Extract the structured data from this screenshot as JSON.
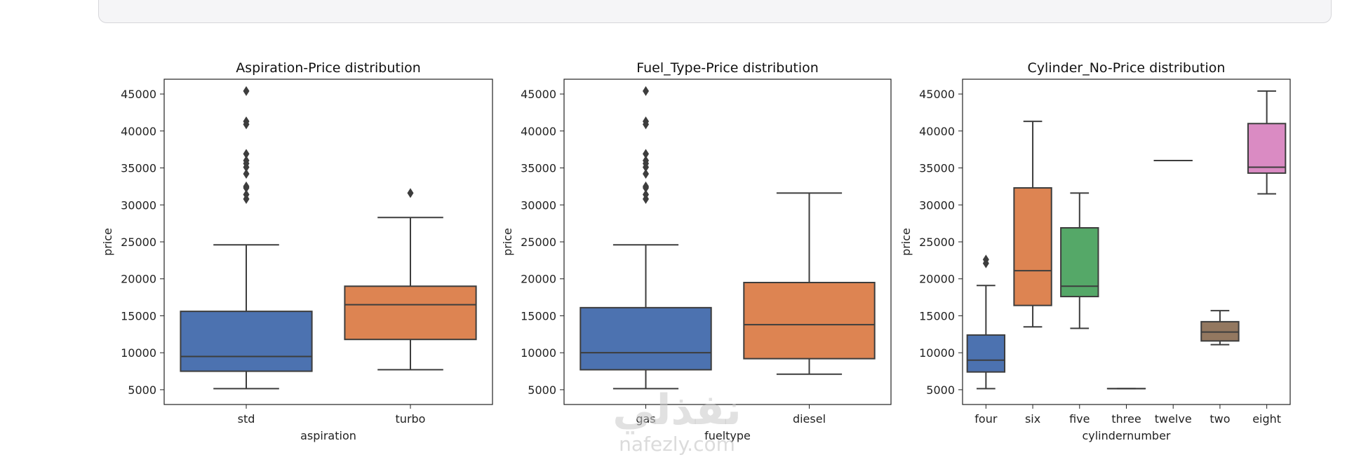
{
  "colors": {
    "blue": "#4c72b0",
    "orange": "#dd8452",
    "green": "#55a868",
    "red": "#c44e52",
    "purple": "#8172b3",
    "brown": "#937860",
    "pink": "#da8bc3",
    "line": "#3d3d3d"
  },
  "watermark": {
    "glyph": "نفذلي",
    "url": "nafezly.com"
  },
  "chart_data": [
    {
      "type": "box",
      "title": "Aspiration-Price distribution",
      "xlabel": "aspiration",
      "ylabel": "price",
      "ylim": [
        3000,
        47000
      ],
      "yticks": [
        5000,
        10000,
        15000,
        20000,
        25000,
        30000,
        35000,
        40000,
        45000
      ],
      "categories": [
        "std",
        "turbo"
      ],
      "boxes": [
        {
          "category": "std",
          "color": "blue",
          "whislo": 5150,
          "q1": 7500,
          "median": 9500,
          "q3": 15600,
          "whishi": 24600,
          "fliers": [
            30800,
            31400,
            32300,
            32500,
            34200,
            35100,
            35600,
            36000,
            36900,
            40900,
            41300,
            45400
          ]
        },
        {
          "category": "turbo",
          "color": "orange",
          "whislo": 7700,
          "q1": 11800,
          "median": 16500,
          "q3": 19000,
          "whishi": 28300,
          "fliers": [
            31600
          ]
        }
      ]
    },
    {
      "type": "box",
      "title": "Fuel_Type-Price distribution",
      "xlabel": "fueltype",
      "ylabel": "price",
      "ylim": [
        3000,
        47000
      ],
      "yticks": [
        5000,
        10000,
        15000,
        20000,
        25000,
        30000,
        35000,
        40000,
        45000
      ],
      "categories": [
        "gas",
        "diesel"
      ],
      "boxes": [
        {
          "category": "gas",
          "color": "blue",
          "whislo": 5150,
          "q1": 7700,
          "median": 10000,
          "q3": 16100,
          "whishi": 24600,
          "fliers": [
            30800,
            31400,
            32300,
            32500,
            34200,
            35100,
            35600,
            36000,
            36900,
            40900,
            41300,
            45400
          ]
        },
        {
          "category": "diesel",
          "color": "orange",
          "whislo": 7100,
          "q1": 9200,
          "median": 13800,
          "q3": 19500,
          "whishi": 31600,
          "fliers": []
        }
      ]
    },
    {
      "type": "box",
      "title": "Cylinder_No-Price distribution",
      "xlabel": "cylindernumber",
      "ylabel": "price",
      "ylim": [
        3000,
        47000
      ],
      "yticks": [
        5000,
        10000,
        15000,
        20000,
        25000,
        30000,
        35000,
        40000,
        45000
      ],
      "categories": [
        "four",
        "six",
        "five",
        "three",
        "twelve",
        "two",
        "eight"
      ],
      "boxes": [
        {
          "category": "four",
          "color": "blue",
          "whislo": 5150,
          "q1": 7400,
          "median": 9000,
          "q3": 12400,
          "whishi": 19100,
          "fliers": [
            22100,
            22600
          ]
        },
        {
          "category": "six",
          "color": "orange",
          "whislo": 13500,
          "q1": 16400,
          "median": 21100,
          "q3": 32300,
          "whishi": 41300,
          "fliers": []
        },
        {
          "category": "five",
          "color": "green",
          "whislo": 13300,
          "q1": 17600,
          "median": 19000,
          "q3": 26900,
          "whishi": 31600,
          "fliers": []
        },
        {
          "category": "three",
          "color": "red",
          "whislo": 5150,
          "q1": 5150,
          "median": 5150,
          "q3": 5150,
          "whishi": 5150,
          "fliers": []
        },
        {
          "category": "twelve",
          "color": "purple",
          "whislo": 36000,
          "q1": 36000,
          "median": 36000,
          "q3": 36000,
          "whishi": 36000,
          "fliers": []
        },
        {
          "category": "two",
          "color": "brown",
          "whislo": 11100,
          "q1": 11600,
          "median": 12800,
          "q3": 14200,
          "whishi": 15700,
          "fliers": []
        },
        {
          "category": "eight",
          "color": "pink",
          "whislo": 31500,
          "q1": 34300,
          "median": 35100,
          "q3": 41000,
          "whishi": 45400,
          "fliers": []
        }
      ]
    }
  ]
}
